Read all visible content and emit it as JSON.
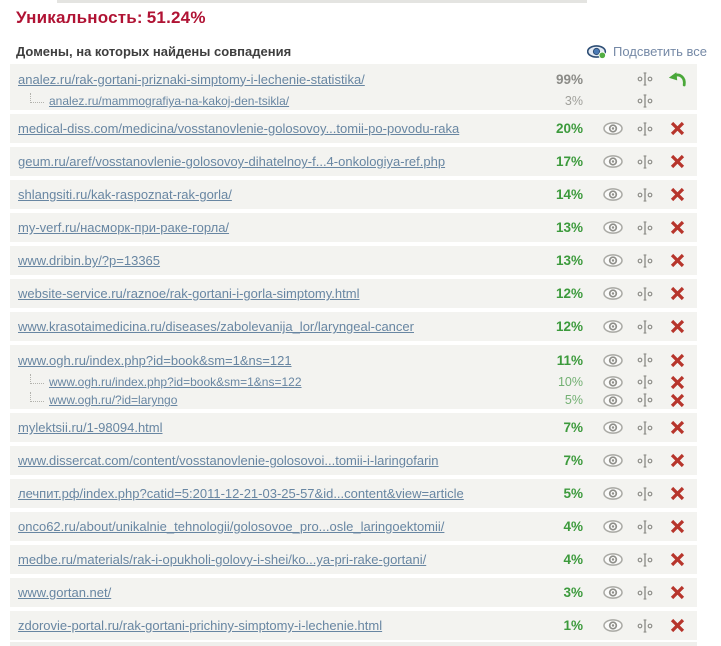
{
  "page": {
    "title_label": "Уникальность:",
    "title_value": "51.24%",
    "domains_header": "Домены, на которых найдены совпадения",
    "highlight_all": "Подсветить все"
  },
  "colors": {
    "title_red": "#b01334",
    "row_bg": "#f3f3f0",
    "link_blue": "#6886a2",
    "highlight_link_blue": "#7589a6",
    "percent_green": "#3c9a3c",
    "percent_green_light": "#73b073",
    "percent_gray": "#8b8b87",
    "delete_red": "#b7352c",
    "restore_green": "#4aa83a",
    "icon_gray": "#90908b"
  },
  "groups": [
    {
      "rows": [
        {
          "url": "analez.ru/rak-gortani-priznaki-simptomy-i-lechenie-statistika/",
          "percent": "99%",
          "percent_class": "gray-bold",
          "child": false,
          "icons": {
            "eye": false,
            "match": true,
            "del": false,
            "restore": true
          }
        },
        {
          "url": "analez.ru/mammografiya-na-kakoj-den-tsikla/",
          "percent": "3%",
          "percent_class": "gray",
          "child": true,
          "icons": {
            "eye": false,
            "match": true,
            "del": false,
            "restore": false
          }
        }
      ]
    },
    {
      "rows": [
        {
          "url": "medical-diss.com/medicina/vosstanovlenie-golosovoy...tomii-po-povodu-raka",
          "percent": "20%",
          "percent_class": "green-bold",
          "child": false,
          "icons": {
            "eye": true,
            "match": true,
            "del": true,
            "restore": false
          }
        }
      ]
    },
    {
      "rows": [
        {
          "url": "geum.ru/aref/vosstanovlenie-golosovoy-dihatelnoy-f...4-onkologiya-ref.php",
          "percent": "17%",
          "percent_class": "green-bold",
          "child": false,
          "icons": {
            "eye": true,
            "match": true,
            "del": true,
            "restore": false
          }
        }
      ]
    },
    {
      "rows": [
        {
          "url": "shlangsiti.ru/kak-raspoznat-rak-gorla/",
          "percent": "14%",
          "percent_class": "green-bold",
          "child": false,
          "icons": {
            "eye": true,
            "match": true,
            "del": true,
            "restore": false
          }
        }
      ]
    },
    {
      "rows": [
        {
          "url": "my-verf.ru/насморк-при-раке-горла/",
          "percent": "13%",
          "percent_class": "green-bold",
          "child": false,
          "icons": {
            "eye": true,
            "match": true,
            "del": true,
            "restore": false
          }
        }
      ]
    },
    {
      "rows": [
        {
          "url": "www.dribin.by/?p=13365",
          "percent": "13%",
          "percent_class": "green-bold",
          "child": false,
          "icons": {
            "eye": true,
            "match": true,
            "del": true,
            "restore": false
          }
        }
      ]
    },
    {
      "rows": [
        {
          "url": "website-service.ru/raznoe/rak-gortani-i-gorla-simptomy.html",
          "percent": "12%",
          "percent_class": "green-bold",
          "child": false,
          "icons": {
            "eye": true,
            "match": true,
            "del": true,
            "restore": false
          }
        }
      ]
    },
    {
      "rows": [
        {
          "url": "www.krasotaimedicina.ru/diseases/zabolevanija_lor/laryngeal-cancer",
          "percent": "12%",
          "percent_class": "green-bold",
          "child": false,
          "icons": {
            "eye": true,
            "match": true,
            "del": true,
            "restore": false
          }
        }
      ]
    },
    {
      "rows": [
        {
          "url": "www.ogh.ru/index.php?id=book&sm=1&ns=121",
          "percent": "11%",
          "percent_class": "green-bold",
          "child": false,
          "icons": {
            "eye": true,
            "match": true,
            "del": true,
            "restore": false
          }
        },
        {
          "url": "www.ogh.ru/index.php?id=book&sm=1&ns=122",
          "percent": "10%",
          "percent_class": "green-light",
          "child": true,
          "icons": {
            "eye": true,
            "match": true,
            "del": true,
            "restore": false
          }
        },
        {
          "url": "www.ogh.ru/?id=laryngo",
          "percent": "5%",
          "percent_class": "green-light",
          "child": true,
          "icons": {
            "eye": true,
            "match": true,
            "del": true,
            "restore": false
          }
        }
      ]
    },
    {
      "rows": [
        {
          "url": "mylektsii.ru/1-98094.html",
          "percent": "7%",
          "percent_class": "green-bold",
          "child": false,
          "icons": {
            "eye": true,
            "match": true,
            "del": true,
            "restore": false
          }
        }
      ]
    },
    {
      "rows": [
        {
          "url": "www.dissercat.com/content/vosstanovlenie-golosovoi...tomii-i-laringofarin",
          "percent": "7%",
          "percent_class": "green-bold",
          "child": false,
          "icons": {
            "eye": true,
            "match": true,
            "del": true,
            "restore": false
          }
        }
      ]
    },
    {
      "rows": [
        {
          "url": "лечпит.рф/index.php?catid=5:2011-12-21-03-25-57&id...content&view=article",
          "percent": "5%",
          "percent_class": "green-bold",
          "child": false,
          "icons": {
            "eye": true,
            "match": true,
            "del": true,
            "restore": false
          }
        }
      ]
    },
    {
      "rows": [
        {
          "url": "onco62.ru/about/unikalnie_tehnologii/golosovoe_pro...osle_laringoektomii/",
          "percent": "4%",
          "percent_class": "green-bold",
          "child": false,
          "icons": {
            "eye": true,
            "match": true,
            "del": true,
            "restore": false
          }
        }
      ]
    },
    {
      "rows": [
        {
          "url": "medbe.ru/materials/rak-i-opukholi-golovy-i-shei/ko...ya-pri-rake-gortani/",
          "percent": "4%",
          "percent_class": "green-bold",
          "child": false,
          "icons": {
            "eye": true,
            "match": true,
            "del": true,
            "restore": false
          }
        }
      ]
    },
    {
      "rows": [
        {
          "url": "www.gortan.net/",
          "percent": "3%",
          "percent_class": "green-bold",
          "child": false,
          "icons": {
            "eye": true,
            "match": true,
            "del": true,
            "restore": false
          }
        }
      ]
    },
    {
      "rows": [
        {
          "url": "zdorovie-portal.ru/rak-gortani-prichiny-simptomy-i-lechenie.html",
          "percent": "1%",
          "percent_class": "green-bold",
          "child": false,
          "icons": {
            "eye": true,
            "match": true,
            "del": true,
            "restore": false
          }
        }
      ]
    }
  ]
}
